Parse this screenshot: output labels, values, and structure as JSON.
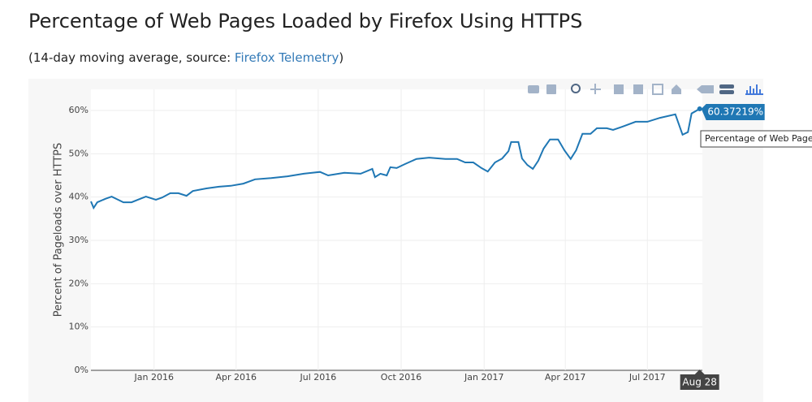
{
  "chart_data": {
    "type": "line",
    "title": "Percentage of Web Pages Loaded by Firefox Using HTTPS",
    "subtitle_prefix": "(14-day moving average, source: ",
    "source_link": "Firefox Telemetry",
    "subtitle_suffix": ")",
    "y_label": "Percent of Pageloads over HTTPS",
    "x": [
      "2015-10-23",
      "2015-10-26",
      "2015-10-30",
      "2015-11-08",
      "2015-11-15",
      "2015-11-22",
      "2015-11-28",
      "2015-12-07",
      "2015-12-14",
      "2015-12-23",
      "2016-01-03",
      "2016-01-10",
      "2016-01-19",
      "2016-01-28",
      "2016-02-06",
      "2016-02-13",
      "2016-02-28",
      "2016-03-13",
      "2016-03-26",
      "2016-04-09",
      "2016-04-22",
      "2016-05-10",
      "2016-05-28",
      "2016-06-15",
      "2016-07-03",
      "2016-07-12",
      "2016-07-30",
      "2016-08-17",
      "2016-08-30",
      "2016-09-02",
      "2016-09-08",
      "2016-09-15",
      "2016-09-19",
      "2016-09-26",
      "2016-10-05",
      "2016-10-18",
      "2016-11-01",
      "2016-11-19",
      "2016-12-02",
      "2016-12-11",
      "2016-12-20",
      "2016-12-29",
      "2017-01-05",
      "2017-01-13",
      "2017-01-21",
      "2017-01-28",
      "2017-01-31",
      "2017-02-08",
      "2017-02-12",
      "2017-02-18",
      "2017-02-24",
      "2017-03-02",
      "2017-03-08",
      "2017-03-15",
      "2017-03-24",
      "2017-03-31",
      "2017-04-07",
      "2017-04-13",
      "2017-04-20",
      "2017-04-29",
      "2017-05-06",
      "2017-05-17",
      "2017-05-24",
      "2017-06-04",
      "2017-06-18",
      "2017-07-01",
      "2017-07-15",
      "2017-08-01",
      "2017-08-09",
      "2017-08-15",
      "2017-08-19",
      "2017-08-28"
    ],
    "series": [
      {
        "name": "Percentage of Web Pages",
        "color": "#1f77b4",
        "values": [
          39.0,
          37.5,
          38.8,
          39.6,
          40.1,
          39.4,
          38.8,
          38.8,
          39.4,
          40.1,
          39.4,
          39.9,
          40.9,
          40.9,
          40.3,
          41.4,
          42.0,
          42.4,
          42.6,
          43.1,
          44.1,
          44.4,
          44.8,
          45.4,
          45.8,
          45.0,
          45.6,
          45.4,
          46.5,
          44.6,
          45.4,
          45.0,
          46.9,
          46.7,
          47.6,
          48.8,
          49.1,
          48.8,
          48.8,
          48.0,
          48.0,
          46.7,
          45.9,
          48.0,
          48.9,
          50.6,
          52.7,
          52.7,
          48.9,
          47.4,
          46.5,
          48.4,
          51.2,
          53.3,
          53.3,
          50.8,
          48.8,
          50.8,
          54.6,
          54.6,
          55.9,
          55.9,
          55.5,
          56.3,
          57.4,
          57.4,
          58.3,
          59.1,
          54.4,
          55.0,
          59.3,
          60.37219
        ]
      }
    ],
    "xlim": [
      "2015-10-23",
      "2017-08-31"
    ],
    "xticks": [
      {
        "value": "2016-01-01",
        "label": "Jan 2016"
      },
      {
        "value": "2016-04-01",
        "label": "Apr 2016"
      },
      {
        "value": "2016-07-01",
        "label": "Jul 2016"
      },
      {
        "value": "2016-10-01",
        "label": "Oct 2016"
      },
      {
        "value": "2017-01-01",
        "label": "Jan 2017"
      },
      {
        "value": "2017-04-01",
        "label": "Apr 2017"
      },
      {
        "value": "2017-07-01",
        "label": "Jul 2017"
      }
    ],
    "ylim": [
      0,
      60
    ],
    "yticks": [
      {
        "value": 0,
        "label": "0%"
      },
      {
        "value": 10,
        "label": "10%"
      },
      {
        "value": 20,
        "label": "20%"
      },
      {
        "value": 30,
        "label": "30%"
      },
      {
        "value": 40,
        "label": "40%"
      },
      {
        "value": 50,
        "label": "50%"
      },
      {
        "value": 60,
        "label": "60%"
      }
    ],
    "grid": true,
    "hover": {
      "x": "2017-08-28",
      "x_label": "Aug 28",
      "value": 60.37219,
      "label": "60.37219%"
    }
  }
}
